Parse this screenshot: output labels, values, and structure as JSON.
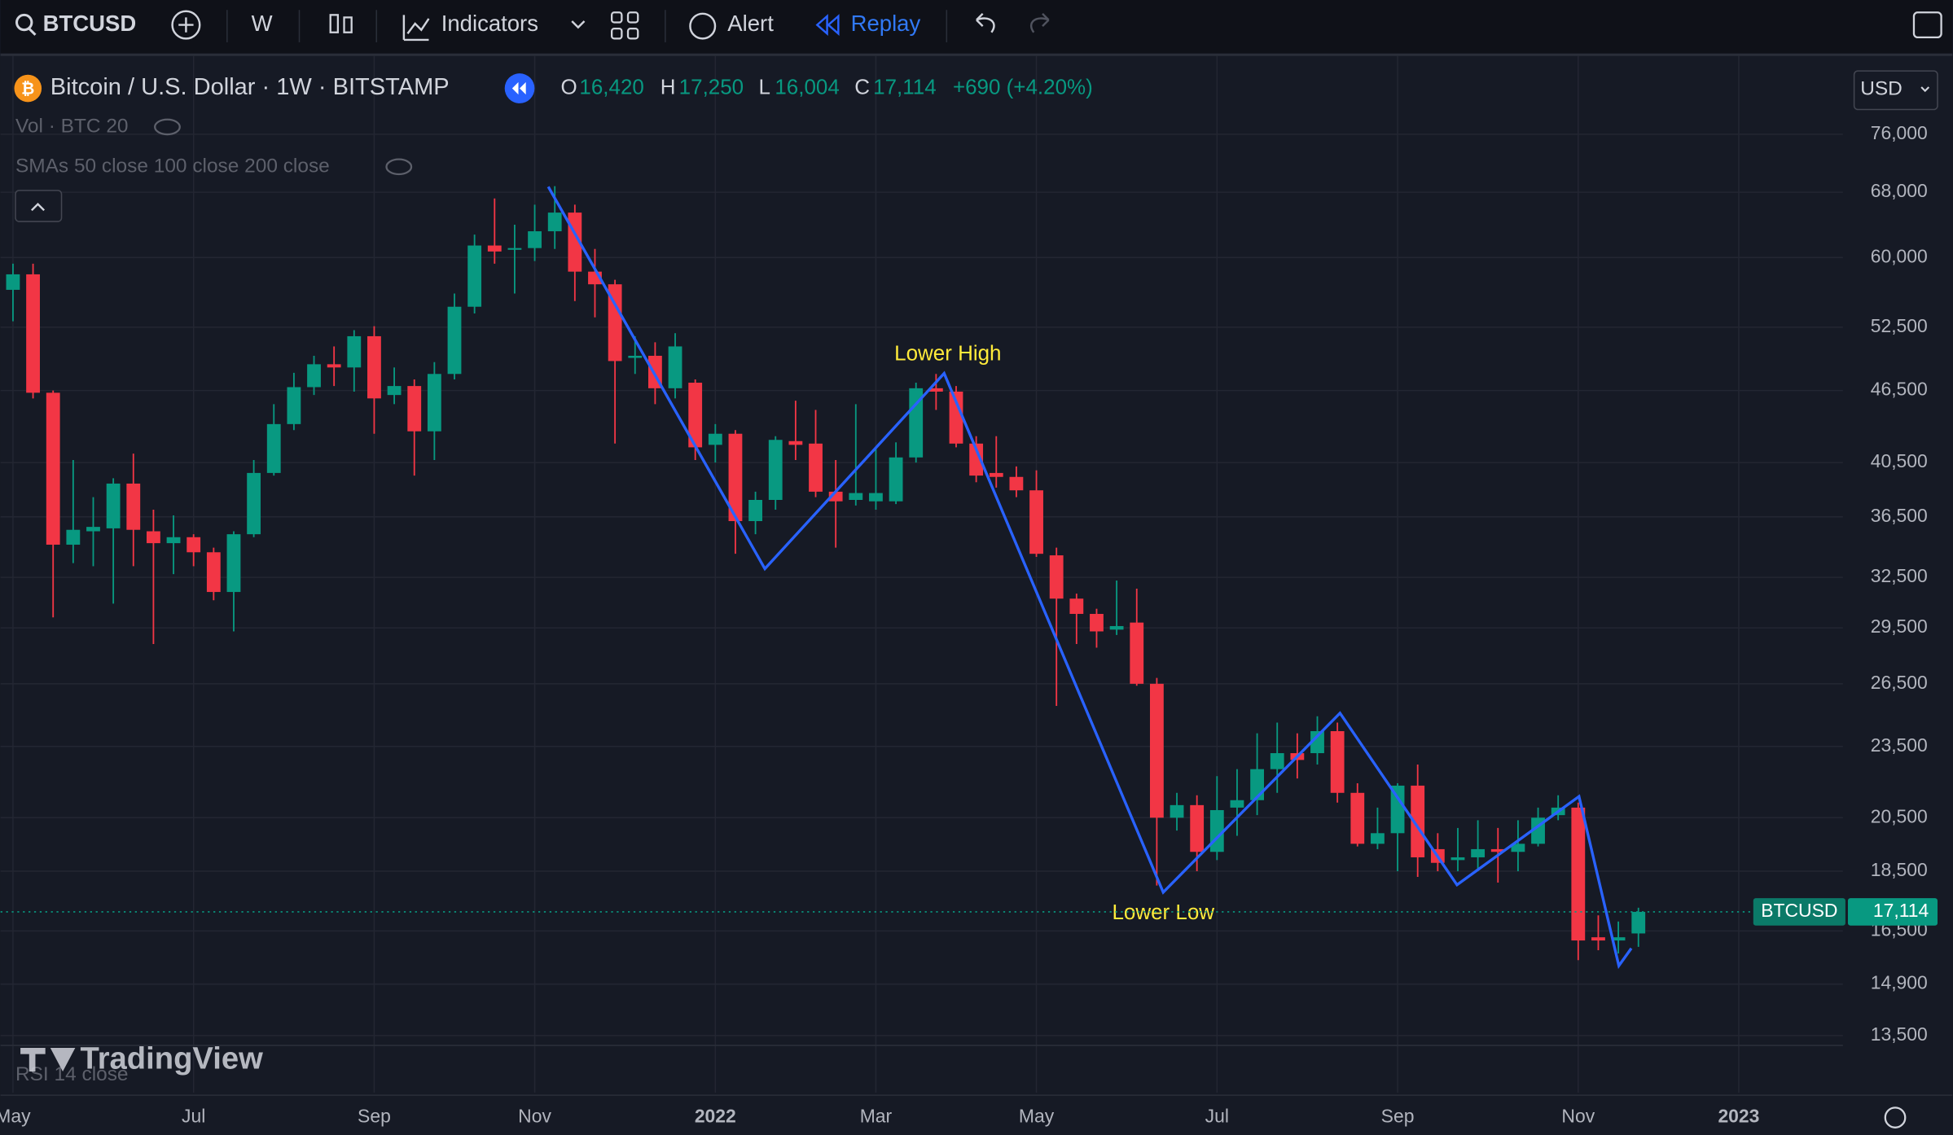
{
  "toolbar": {
    "symbol": "BTCUSD",
    "interval": "W",
    "indicators": "Indicators",
    "alert": "Alert",
    "replay": "Replay",
    "currency": "USD"
  },
  "legend": {
    "title": "Bitcoin / U.S. Dollar · 1W · BITSTAMP",
    "o_label": "O",
    "o": "16,420",
    "h_label": "H",
    "h": "17,250",
    "l_label": "L",
    "l": "16,004",
    "c_label": "C",
    "c": "17,114",
    "change": "+690 (+4.20%)",
    "volume": "Vol · BTC 20",
    "smas": "SMAs 50 close 100 close 200 close",
    "rsi": "RSI 14 close"
  },
  "price_tag": {
    "symbol": "BTCUSD",
    "price": "17,114"
  },
  "watermark": "TradingView",
  "chart_data": {
    "type": "candlestick",
    "log": true,
    "grid": true,
    "up_color": "#089981",
    "down_color": "#f23645",
    "annotations": [
      "Lower High",
      "Lower Low"
    ],
    "ylim": [
      12100,
      88300
    ],
    "yticks": [
      {
        "value": 76000,
        "label": "76,000"
      },
      {
        "value": 68000,
        "label": "68,000"
      },
      {
        "value": 60000,
        "label": "60,000"
      },
      {
        "value": 52500,
        "label": "52,500"
      },
      {
        "value": 46500,
        "label": "46,500"
      },
      {
        "value": 40500,
        "label": "40,500"
      },
      {
        "value": 36500,
        "label": "36,500"
      },
      {
        "value": 32500,
        "label": "32,500"
      },
      {
        "value": 29500,
        "label": "29,500"
      },
      {
        "value": 26500,
        "label": "26,500"
      },
      {
        "value": 23500,
        "label": "23,500"
      },
      {
        "value": 20500,
        "label": "20,500"
      },
      {
        "value": 18500,
        "label": "18,500"
      },
      {
        "value": 16500,
        "label": "16,500"
      },
      {
        "value": 14900,
        "label": "14,900"
      },
      {
        "value": 13500,
        "label": "13,500"
      }
    ],
    "categories": [
      "May",
      null,
      null,
      null,
      null,
      null,
      null,
      null,
      null,
      "Jul",
      null,
      null,
      null,
      null,
      null,
      null,
      null,
      null,
      "Sep",
      null,
      null,
      null,
      null,
      null,
      null,
      null,
      "Nov",
      null,
      null,
      null,
      null,
      null,
      null,
      null,
      null,
      "2022",
      null,
      null,
      null,
      null,
      null,
      null,
      null,
      "Mar",
      null,
      null,
      null,
      null,
      null,
      null,
      null,
      "May",
      null,
      null,
      null,
      null,
      null,
      null,
      null,
      null,
      "Jul",
      null,
      null,
      null,
      null,
      null,
      null,
      null,
      null,
      "Sep",
      null,
      null,
      null,
      null,
      null,
      null,
      null,
      null,
      "Nov",
      null,
      null,
      null,
      null,
      null,
      null,
      null,
      "2023"
    ],
    "open": [
      56400,
      58100,
      46300,
      34600,
      35500,
      35700,
      38900,
      35500,
      34700,
      35100,
      34100,
      31600,
      35300,
      39700,
      43600,
      46800,
      48900,
      48600,
      51600,
      46100,
      46900,
      43000,
      48000,
      54600,
      61400,
      60900,
      61100,
      63100,
      65400,
      58400,
      57000,
      49500,
      49700,
      46700,
      47200,
      41900,
      42800,
      36200,
      37700,
      42200,
      42000,
      38300,
      37700,
      37600,
      37600,
      40900,
      46700,
      46400,
      42000,
      39700,
      39400,
      38400,
      33900,
      31200,
      30300,
      29400,
      29800,
      26500,
      20500,
      21000,
      19200,
      20900,
      21200,
      22500,
      23200,
      23200,
      24200,
      21500,
      19500,
      19900,
      21800,
      19300,
      18900,
      19000,
      19300,
      19200,
      19500,
      20600,
      20900,
      16300,
      16200,
      16420,
      null,
      null,
      null,
      null,
      null
    ],
    "high": [
      59300,
      59300,
      46500,
      40700,
      37900,
      39300,
      41200,
      37000,
      36600,
      35300,
      34400,
      35500,
      40700,
      45300,
      48100,
      49700,
      50600,
      52200,
      52600,
      48600,
      47500,
      49100,
      56000,
      62700,
      67200,
      63900,
      66400,
      68800,
      66400,
      61000,
      57500,
      51600,
      51000,
      51900,
      47500,
      43600,
      43100,
      38300,
      42600,
      45600,
      44800,
      40700,
      45300,
      41700,
      42100,
      47200,
      48000,
      46900,
      42600,
      42600,
      40200,
      39900,
      34400,
      31500,
      30600,
      32300,
      31800,
      26800,
      21500,
      21400,
      22200,
      22500,
      24100,
      24600,
      24100,
      24900,
      24600,
      21900,
      20900,
      21900,
      22700,
      19900,
      20100,
      20400,
      20100,
      20400,
      20900,
      21400,
      21100,
      17000,
      16800,
      17250,
      null,
      null,
      null,
      null,
      null
    ],
    "low": [
      53100,
      45800,
      30100,
      33400,
      33200,
      30900,
      33200,
      28600,
      32700,
      33200,
      31100,
      29300,
      35100,
      39500,
      43100,
      46100,
      46900,
      46400,
      42800,
      45300,
      39500,
      40700,
      47500,
      53900,
      59300,
      56000,
      59600,
      61000,
      55200,
      53500,
      42000,
      48000,
      45300,
      45800,
      40700,
      40500,
      34000,
      35300,
      37000,
      40700,
      37900,
      34400,
      37300,
      37000,
      37400,
      40500,
      44800,
      41700,
      39000,
      38600,
      37900,
      33800,
      25400,
      28600,
      28400,
      29100,
      26400,
      18000,
      20000,
      18500,
      18900,
      19800,
      20600,
      21500,
      22100,
      22700,
      21100,
      19400,
      19300,
      18500,
      18300,
      18500,
      18500,
      18500,
      18100,
      18500,
      19400,
      20400,
      15600,
      15900,
      15800,
      16004,
      null,
      null,
      null,
      null,
      null
    ],
    "close": [
      58100,
      46300,
      34600,
      35600,
      35800,
      38900,
      35600,
      34700,
      35100,
      34100,
      31600,
      35300,
      39700,
      43600,
      46800,
      48900,
      48600,
      51600,
      45800,
      46900,
      43000,
      48000,
      54600,
      61400,
      60700,
      61100,
      63100,
      65400,
      58400,
      57000,
      49200,
      49700,
      46700,
      50600,
      41700,
      42800,
      36200,
      37700,
      42300,
      41900,
      38300,
      37600,
      38200,
      38200,
      40900,
      46700,
      46400,
      42000,
      39500,
      39400,
      38400,
      34000,
      31200,
      30300,
      29300,
      29600,
      26500,
      20500,
      21000,
      19200,
      20800,
      21200,
      22500,
      23200,
      22900,
      24200,
      21500,
      19500,
      19900,
      21800,
      19000,
      18800,
      19000,
      19300,
      19200,
      19500,
      20500,
      20900,
      16200,
      16200,
      16300,
      17114,
      null,
      null,
      null,
      null,
      null
    ]
  }
}
